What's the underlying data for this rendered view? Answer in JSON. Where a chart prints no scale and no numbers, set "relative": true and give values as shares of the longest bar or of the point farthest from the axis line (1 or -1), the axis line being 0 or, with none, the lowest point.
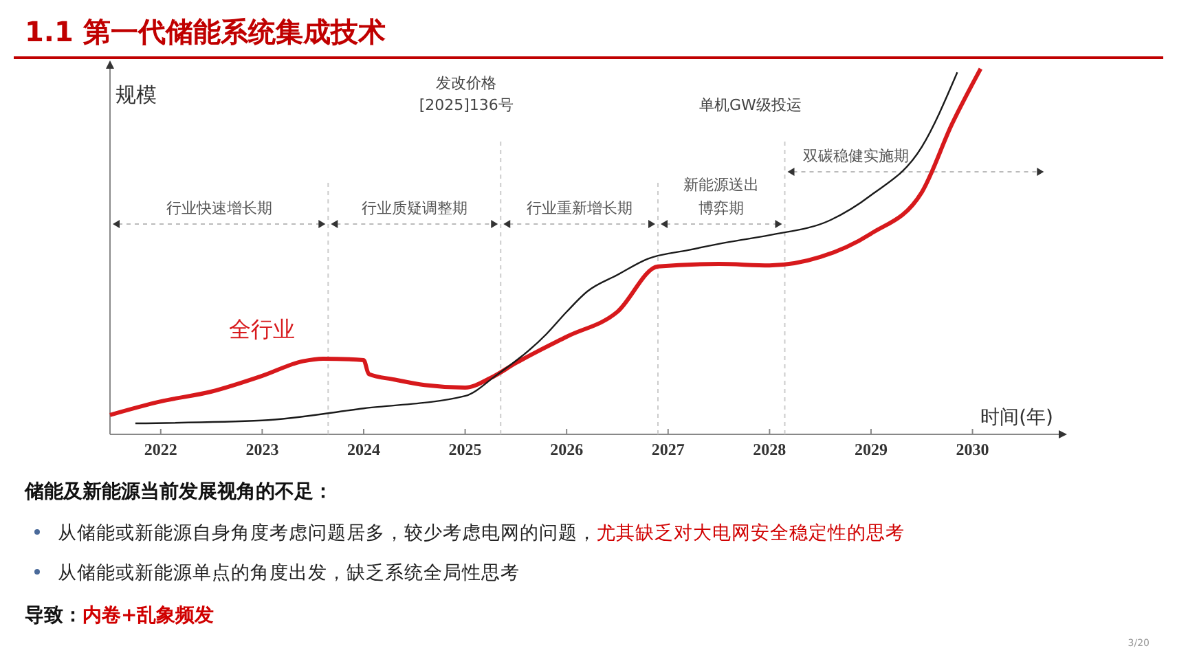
{
  "chart_data": {
    "type": "line",
    "title": "1.1 第一代储能系统集成技术",
    "xlabel": "时间(年)",
    "ylabel": "规模",
    "relative": true,
    "xlim": [
      2021.5,
      2030.85
    ],
    "xticks": [
      2022,
      2023,
      2024,
      2025,
      2026,
      2027,
      2028,
      2029,
      2030
    ],
    "series": [
      {
        "name": "全行业",
        "color": "#d7191c",
        "x": [
          2021.5,
          2022,
          2022.5,
          2023,
          2023.4,
          2023.6,
          2024,
          2024.05,
          2024.3,
          2024.6,
          2025,
          2025.25,
          2025.5,
          2026,
          2026.5,
          2026.9,
          2027.5,
          2028,
          2028.5,
          2029,
          2029.5,
          2029.8,
          2030.08
        ],
        "values": [
          0.053,
          0.09,
          0.117,
          0.16,
          0.2,
          0.207,
          0.203,
          0.165,
          0.15,
          0.135,
          0.128,
          0.154,
          0.195,
          0.267,
          0.335,
          0.459,
          0.466,
          0.462,
          0.485,
          0.549,
          0.662,
          0.85,
          1
        ]
      },
      {
        "color": "#1a1a1a",
        "x": [
          2021.75,
          2023,
          2024,
          2025,
          2025.3,
          2025.8,
          2026,
          2026.2,
          2026.5,
          2026.8,
          2027.2,
          2027.6,
          2028,
          2028.6,
          2029,
          2029.5,
          2029.85
        ],
        "values": [
          0.03,
          0.038,
          0.071,
          0.105,
          0.16,
          0.274,
          0.335,
          0.39,
          0.436,
          0.48,
          0.504,
          0.526,
          0.545,
          0.586,
          0.654,
          0.786,
          0.99
        ]
      }
    ],
    "ref_lines": [
      {
        "axis": "x",
        "value": 2023.65
      },
      {
        "axis": "x",
        "value": 2025.35,
        "label": "发改价格\n[2025]136号"
      },
      {
        "axis": "x",
        "value": 2026.9
      },
      {
        "axis": "x",
        "value": 2028.15,
        "label": "单机GW级投运"
      }
    ],
    "annotations": [
      "行业快速增长期",
      "行业质疑调整期",
      "行业重新增长期",
      "新能源送出博弈期",
      "双碳稳健实施期",
      "储能及新能源当前发展视角的不足：",
      "从储能或新能源自身角度考虑问题居多，较少考虑电网的问题，",
      "尤其缺乏对大电网安全稳定性的思考",
      "从储能或新能源单点的角度出发，缺乏系统全局性思考",
      "导致：",
      "内卷+乱象频发",
      "3/20"
    ]
  }
}
